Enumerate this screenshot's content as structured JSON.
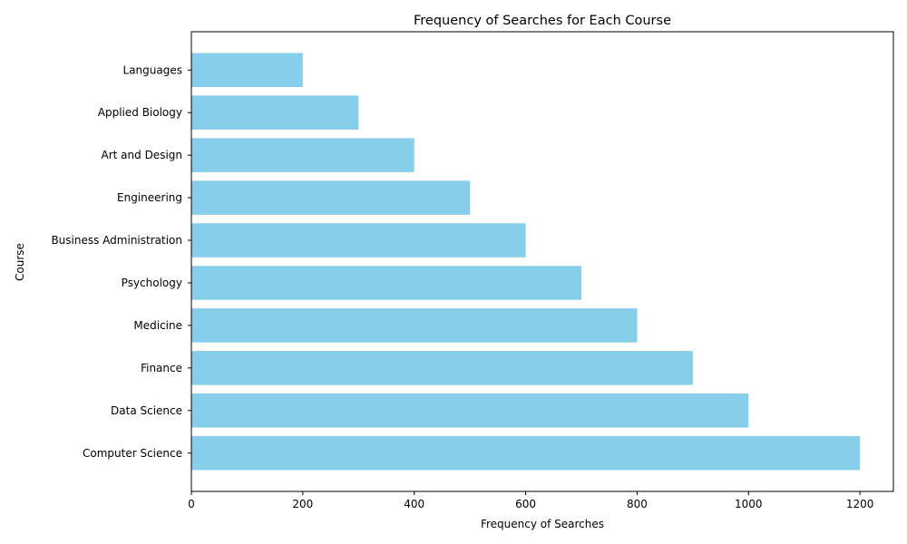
{
  "chart_data": {
    "type": "bar",
    "orientation": "horizontal",
    "title": "Frequency of Searches for Each Course",
    "xlabel": "Frequency of Searches",
    "ylabel": "Course",
    "categories": [
      "Computer Science",
      "Data Science",
      "Finance",
      "Medicine",
      "Psychology",
      "Business Administration",
      "Engineering",
      "Art and Design",
      "Applied Biology",
      "Languages"
    ],
    "values": [
      1200,
      1000,
      900,
      800,
      700,
      600,
      500,
      400,
      300,
      200
    ],
    "xlim": [
      0,
      1260
    ],
    "xticks": [
      0,
      200,
      400,
      600,
      800,
      1000,
      1200
    ],
    "xtick_labels": [
      "0",
      "200",
      "400",
      "600",
      "800",
      "1000",
      "1200"
    ],
    "bar_color": "#87ceeb",
    "grid": false,
    "legend": false
  }
}
